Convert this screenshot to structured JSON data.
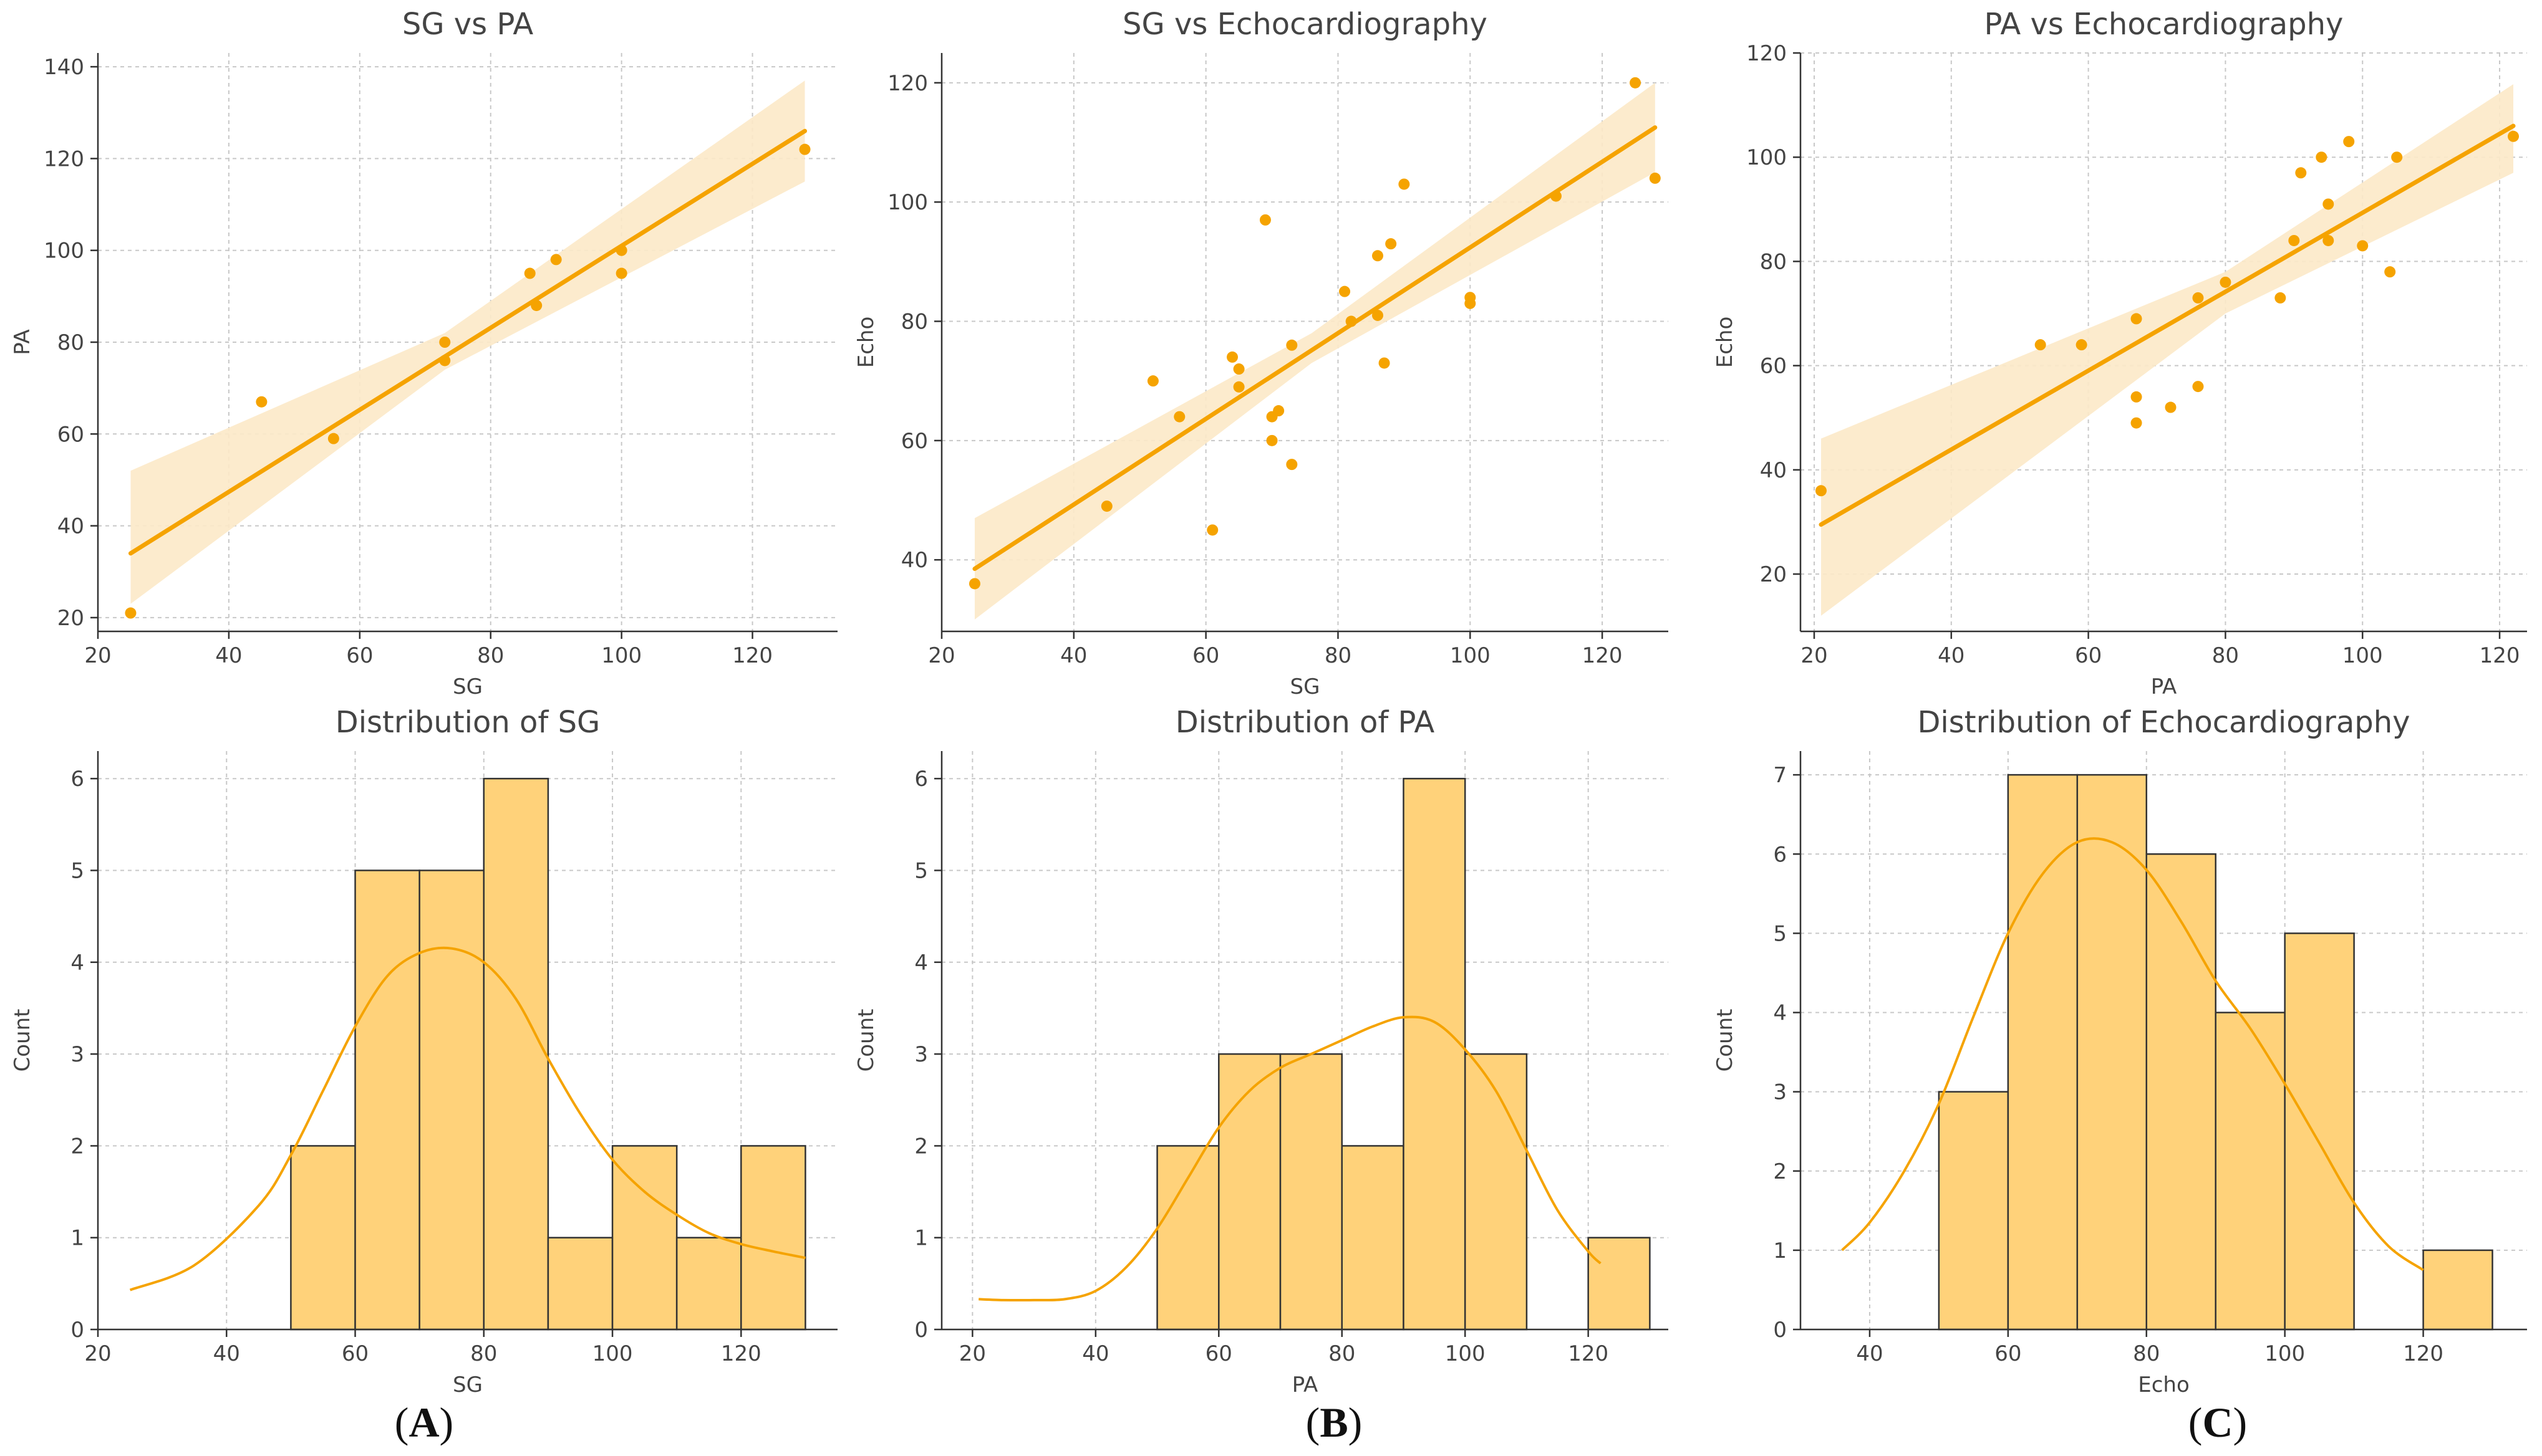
{
  "colors": {
    "accent": "#F5A300",
    "band": "#FCE9C8",
    "bar_fill": "#FFD27A",
    "bar_edge": "#333333",
    "grid": "#C8C8C8"
  },
  "panel_labels": [
    {
      "open": "(",
      "letter": "A",
      "close": ")"
    },
    {
      "open": "(",
      "letter": "B",
      "close": ")"
    },
    {
      "open": "(",
      "letter": "C",
      "close": ")"
    }
  ],
  "chart_data": [
    {
      "type": "scatter",
      "title": "SG vs PA",
      "xlabel": "SG",
      "ylabel": "PA",
      "xlim": [
        20,
        133
      ],
      "ylim": [
        17,
        143
      ],
      "xticks": [
        20,
        40,
        60,
        80,
        100,
        120
      ],
      "yticks": [
        20,
        40,
        60,
        80,
        100,
        120,
        140
      ],
      "grid": true,
      "points": [
        [
          25,
          21
        ],
        [
          45,
          67
        ],
        [
          56,
          59
        ],
        [
          73,
          76
        ],
        [
          73,
          80
        ],
        [
          86,
          95
        ],
        [
          87,
          88
        ],
        [
          90,
          98
        ],
        [
          100,
          100
        ],
        [
          100,
          95
        ],
        [
          128,
          122
        ]
      ],
      "regression": {
        "x": [
          25,
          128
        ],
        "y": [
          34,
          126
        ]
      },
      "ci_band": {
        "x": [
          25,
          73,
          128
        ],
        "upper": [
          52,
          82,
          137
        ],
        "lower": [
          23,
          74,
          115
        ]
      }
    },
    {
      "type": "scatter",
      "title": "SG vs Echocardiography",
      "xlabel": "SG",
      "ylabel": "Echo",
      "xlim": [
        20,
        130
      ],
      "ylim": [
        28,
        125
      ],
      "xticks": [
        20,
        40,
        60,
        80,
        100,
        120
      ],
      "yticks": [
        40,
        60,
        80,
        100,
        120
      ],
      "grid": true,
      "points": [
        [
          25,
          36
        ],
        [
          45,
          49
        ],
        [
          52,
          70
        ],
        [
          56,
          64
        ],
        [
          61,
          45
        ],
        [
          64,
          74
        ],
        [
          65,
          72
        ],
        [
          65,
          69
        ],
        [
          69,
          97
        ],
        [
          70,
          60
        ],
        [
          70,
          64
        ],
        [
          71,
          65
        ],
        [
          73,
          76
        ],
        [
          73,
          56
        ],
        [
          81,
          85
        ],
        [
          82,
          80
        ],
        [
          86,
          91
        ],
        [
          86,
          81
        ],
        [
          87,
          73
        ],
        [
          88,
          93
        ],
        [
          90,
          103
        ],
        [
          100,
          84
        ],
        [
          100,
          83
        ],
        [
          113,
          101
        ],
        [
          125,
          120
        ],
        [
          128,
          104
        ]
      ],
      "regression": {
        "x": [
          25,
          128
        ],
        "y": [
          38.5,
          112.5
        ]
      },
      "ci_band": {
        "x": [
          25,
          76,
          128
        ],
        "upper": [
          47,
          78,
          120
        ],
        "lower": [
          30,
          73,
          105
        ]
      }
    },
    {
      "type": "scatter",
      "title": "PA vs Echocardiography",
      "xlabel": "PA",
      "ylabel": "Echo",
      "xlim": [
        18,
        124
      ],
      "ylim": [
        9,
        120
      ],
      "xticks": [
        20,
        40,
        60,
        80,
        100,
        120
      ],
      "yticks": [
        20,
        40,
        60,
        80,
        100,
        120
      ],
      "grid": true,
      "points": [
        [
          21,
          36
        ],
        [
          53,
          64
        ],
        [
          59,
          64
        ],
        [
          67,
          69
        ],
        [
          67,
          54
        ],
        [
          67,
          49
        ],
        [
          72,
          52
        ],
        [
          76,
          73
        ],
        [
          76,
          56
        ],
        [
          80,
          76
        ],
        [
          88,
          73
        ],
        [
          90,
          84
        ],
        [
          91,
          97
        ],
        [
          94,
          100
        ],
        [
          95,
          91
        ],
        [
          95,
          84
        ],
        [
          98,
          103
        ],
        [
          100,
          83
        ],
        [
          104,
          78
        ],
        [
          105,
          100
        ],
        [
          122,
          104
        ]
      ],
      "regression": {
        "x": [
          21,
          122
        ],
        "y": [
          29.5,
          106
        ]
      },
      "ci_band": {
        "x": [
          21,
          80,
          122
        ],
        "upper": [
          46,
          78,
          114
        ],
        "lower": [
          12,
          70,
          97
        ]
      }
    },
    {
      "type": "histogram",
      "title": "Distribution of SG",
      "xlabel": "SG",
      "ylabel": "Count",
      "xlim": [
        20,
        135
      ],
      "ylim": [
        0,
        6.3
      ],
      "xticks": [
        20,
        40,
        60,
        80,
        100,
        120
      ],
      "yticks": [
        0,
        1,
        2,
        3,
        4,
        5,
        6
      ],
      "grid": true,
      "bins": [
        [
          50,
          60,
          2
        ],
        [
          60,
          70,
          5
        ],
        [
          70,
          80,
          5
        ],
        [
          80,
          90,
          6
        ],
        [
          90,
          100,
          1
        ],
        [
          100,
          110,
          2
        ],
        [
          110,
          120,
          1
        ],
        [
          120,
          130,
          2
        ]
      ],
      "kde": {
        "x": [
          25,
          35,
          45,
          50,
          55,
          60,
          65,
          70,
          75,
          80,
          85,
          90,
          95,
          100,
          105,
          110,
          115,
          120,
          125,
          130
        ],
        "y": [
          0.43,
          0.7,
          1.35,
          1.9,
          2.6,
          3.3,
          3.85,
          4.1,
          4.15,
          4.0,
          3.6,
          2.95,
          2.35,
          1.85,
          1.5,
          1.25,
          1.05,
          0.93,
          0.85,
          0.78
        ]
      }
    },
    {
      "type": "histogram",
      "title": "Distribution of PA",
      "xlabel": "PA",
      "ylabel": "Count",
      "xlim": [
        15,
        133
      ],
      "ylim": [
        0,
        6.3
      ],
      "xticks": [
        20,
        40,
        60,
        80,
        100,
        120
      ],
      "yticks": [
        0,
        1,
        2,
        3,
        4,
        5,
        6
      ],
      "grid": true,
      "bins": [
        [
          50,
          60,
          2
        ],
        [
          60,
          70,
          3
        ],
        [
          70,
          80,
          3
        ],
        [
          80,
          90,
          2
        ],
        [
          90,
          100,
          6
        ],
        [
          100,
          110,
          3
        ],
        [
          120,
          130,
          1
        ]
      ],
      "kde": {
        "x": [
          21,
          25,
          30,
          35,
          40,
          45,
          50,
          55,
          60,
          65,
          70,
          75,
          80,
          85,
          90,
          95,
          100,
          105,
          110,
          115,
          120,
          122
        ],
        "y": [
          0.33,
          0.32,
          0.32,
          0.33,
          0.42,
          0.68,
          1.1,
          1.65,
          2.2,
          2.6,
          2.85,
          3.0,
          3.15,
          3.3,
          3.4,
          3.35,
          3.05,
          2.6,
          1.95,
          1.3,
          0.85,
          0.72
        ]
      }
    },
    {
      "type": "histogram",
      "title": "Distribution of Echocardiography",
      "xlabel": "Echo",
      "ylabel": "Count",
      "xlim": [
        30,
        135
      ],
      "ylim": [
        0,
        7.3
      ],
      "xticks": [
        40,
        60,
        80,
        100,
        120
      ],
      "yticks": [
        0,
        1,
        2,
        3,
        4,
        5,
        6,
        7
      ],
      "grid": true,
      "bins": [
        [
          50,
          60,
          3
        ],
        [
          60,
          70,
          7
        ],
        [
          70,
          80,
          7
        ],
        [
          80,
          90,
          6
        ],
        [
          90,
          100,
          4
        ],
        [
          100,
          110,
          5
        ],
        [
          120,
          130,
          1
        ]
      ],
      "kde": {
        "x": [
          36,
          40,
          45,
          50,
          55,
          60,
          65,
          70,
          75,
          80,
          85,
          90,
          95,
          100,
          105,
          110,
          115,
          120
        ],
        "y": [
          1.0,
          1.35,
          2.0,
          2.85,
          3.95,
          5.0,
          5.75,
          6.15,
          6.15,
          5.8,
          5.15,
          4.4,
          3.8,
          3.1,
          2.35,
          1.6,
          1.05,
          0.75
        ]
      }
    }
  ]
}
